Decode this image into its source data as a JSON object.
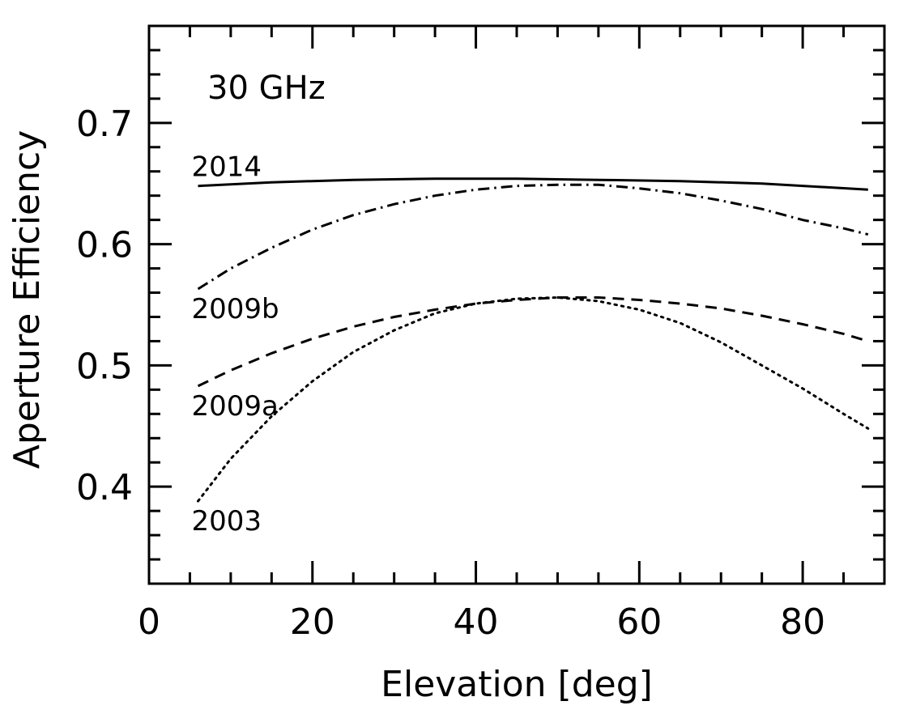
{
  "chart_data": {
    "type": "line",
    "title": "",
    "annotation": "30 GHz",
    "xlabel": "Elevation [deg]",
    "ylabel": "Aperture Efficiency",
    "xlim": [
      0,
      90
    ],
    "ylim": [
      0.32,
      0.78
    ],
    "x_ticks": [
      0,
      20,
      40,
      60,
      80
    ],
    "x_tick_labels": [
      "0",
      "20",
      "40",
      "60",
      "80"
    ],
    "x_minor_step": 5,
    "y_ticks": [
      0.4,
      0.5,
      0.6,
      0.7
    ],
    "y_tick_labels": [
      "0.4",
      "0.5",
      "0.6",
      "0.7"
    ],
    "y_minor_step": 0.02,
    "grid": false,
    "series": [
      {
        "name": "2014",
        "style": "solid",
        "x": [
          6,
          15,
          25,
          35,
          45,
          55,
          65,
          75,
          88
        ],
        "y": [
          0.648,
          0.651,
          0.653,
          0.654,
          0.654,
          0.653,
          0.652,
          0.65,
          0.645
        ]
      },
      {
        "name": "2009b",
        "style": "dashdot",
        "x": [
          6,
          10,
          15,
          20,
          25,
          30,
          35,
          40,
          45,
          50,
          55,
          60,
          65,
          70,
          75,
          80,
          85,
          88
        ],
        "y": [
          0.563,
          0.58,
          0.597,
          0.612,
          0.624,
          0.633,
          0.64,
          0.645,
          0.648,
          0.649,
          0.649,
          0.646,
          0.642,
          0.636,
          0.629,
          0.62,
          0.613,
          0.608
        ]
      },
      {
        "name": "2009a",
        "style": "dashed",
        "x": [
          6,
          10,
          15,
          20,
          25,
          30,
          35,
          40,
          45,
          50,
          55,
          60,
          65,
          70,
          75,
          80,
          85,
          88
        ],
        "y": [
          0.483,
          0.496,
          0.51,
          0.522,
          0.532,
          0.54,
          0.546,
          0.551,
          0.554,
          0.556,
          0.556,
          0.554,
          0.551,
          0.547,
          0.541,
          0.534,
          0.526,
          0.52
        ]
      },
      {
        "name": "2003",
        "style": "dotted",
        "x": [
          6,
          10,
          15,
          20,
          25,
          30,
          35,
          40,
          45,
          50,
          55,
          60,
          65,
          70,
          75,
          80,
          85,
          88
        ],
        "y": [
          0.388,
          0.423,
          0.458,
          0.487,
          0.511,
          0.529,
          0.543,
          0.551,
          0.555,
          0.556,
          0.553,
          0.546,
          0.535,
          0.519,
          0.5,
          0.481,
          0.46,
          0.448
        ]
      }
    ]
  }
}
